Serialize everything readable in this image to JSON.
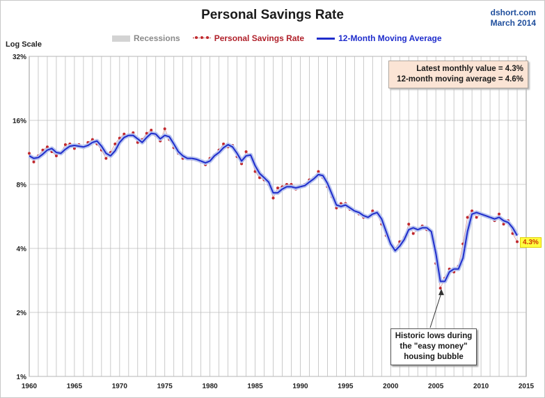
{
  "header": {
    "title": "Personal Savings Rate",
    "source_line1": "dshort.com",
    "source_line2": "March 2014"
  },
  "legend": {
    "recessions": "Recessions",
    "savings_rate": "Personal Savings Rate",
    "moving_average": "12-Month Moving Average"
  },
  "info_box": {
    "line1": "Latest monthly value = 4.3%",
    "line2": "12-month moving average = 4.6%"
  },
  "annotation": {
    "line1": "Historic lows during",
    "line2": "the \"easy money\"",
    "line3": "housing bubble"
  },
  "latest_label": "4.3%",
  "chart_data": {
    "type": "line",
    "title": "Personal Savings Rate",
    "ylabel": "Log Scale",
    "xlabel": "",
    "y_scale": "log2",
    "ylim": [
      1,
      32
    ],
    "xlim": [
      1960,
      2015
    ],
    "y_ticks": [
      "1%",
      "2%",
      "4%",
      "8%",
      "16%",
      "32%"
    ],
    "y_tick_values": [
      1,
      2,
      4,
      8,
      16,
      32
    ],
    "x_ticks": [
      "1960",
      "1965",
      "1970",
      "1975",
      "1980",
      "1985",
      "1990",
      "1995",
      "2000",
      "2005",
      "2010",
      "2015"
    ],
    "x_tick_values": [
      1960,
      1965,
      1970,
      1975,
      1980,
      1985,
      1990,
      1995,
      2000,
      2005,
      2010,
      2015
    ],
    "grid": "vertical yearly lines, horizontal at y ticks",
    "legend_position": "top",
    "recessions": [
      [
        1960.3,
        1961.1
      ],
      [
        1969.9,
        1970.9
      ],
      [
        1973.9,
        1975.2
      ],
      [
        1980.0,
        1980.5
      ],
      [
        1981.5,
        1982.9
      ],
      [
        1990.5,
        1991.2
      ],
      [
        2001.2,
        2001.9
      ],
      [
        2007.9,
        2009.5
      ]
    ],
    "colors": {
      "recession": "#d3d3d3",
      "monthly": "#c0282d",
      "moving_average": "#1f2dcc",
      "moving_average_halo": "#b8c4ee"
    },
    "series": [
      {
        "name": "Personal Savings Rate",
        "style": "monthly points",
        "x": [
          1960.0,
          1960.5,
          1961.0,
          1961.5,
          1962.0,
          1962.5,
          1963.0,
          1963.5,
          1964.0,
          1964.5,
          1965.0,
          1965.5,
          1966.0,
          1966.5,
          1967.0,
          1967.5,
          1968.0,
          1968.5,
          1969.0,
          1969.5,
          1970.0,
          1970.5,
          1971.0,
          1971.5,
          1972.0,
          1972.5,
          1973.0,
          1973.5,
          1974.0,
          1974.5,
          1975.0,
          1975.5,
          1976.0,
          1976.5,
          1977.0,
          1977.5,
          1978.0,
          1978.5,
          1979.0,
          1979.5,
          1980.0,
          1980.5,
          1981.0,
          1981.5,
          1982.0,
          1982.5,
          1983.0,
          1983.5,
          1984.0,
          1984.5,
          1985.0,
          1985.5,
          1986.0,
          1986.5,
          1987.0,
          1987.5,
          1988.0,
          1988.5,
          1989.0,
          1989.5,
          1990.0,
          1990.5,
          1991.0,
          1991.5,
          1992.0,
          1992.5,
          1993.0,
          1993.5,
          1994.0,
          1994.5,
          1995.0,
          1995.5,
          1996.0,
          1996.5,
          1997.0,
          1997.5,
          1998.0,
          1998.5,
          1999.0,
          1999.5,
          2000.0,
          2000.5,
          2001.0,
          2001.5,
          2002.0,
          2002.5,
          2003.0,
          2003.5,
          2004.0,
          2004.5,
          2005.0,
          2005.5,
          2006.0,
          2006.5,
          2007.0,
          2007.5,
          2008.0,
          2008.5,
          2009.0,
          2009.5,
          2010.0,
          2010.5,
          2011.0,
          2011.5,
          2012.0,
          2012.5,
          2013.0,
          2013.5,
          2014.0
        ],
        "values": [
          11.2,
          10.2,
          10.9,
          11.6,
          12.0,
          11.4,
          10.9,
          11.3,
          12.3,
          12.4,
          11.8,
          12.3,
          11.9,
          12.6,
          13.0,
          12.4,
          11.6,
          10.6,
          11.3,
          12.4,
          13.2,
          13.8,
          13.6,
          14.0,
          12.6,
          13.0,
          13.9,
          14.4,
          13.6,
          12.8,
          14.6,
          13.0,
          11.9,
          11.2,
          10.6,
          10.7,
          10.5,
          10.4,
          10.2,
          9.9,
          10.6,
          11.0,
          11.6,
          12.4,
          12.0,
          12.2,
          10.8,
          10.0,
          11.4,
          10.8,
          9.2,
          8.6,
          8.4,
          8.0,
          6.9,
          7.7,
          7.8,
          8.0,
          8.0,
          7.6,
          7.8,
          8.0,
          8.4,
          8.6,
          9.2,
          8.6,
          7.8,
          7.0,
          6.2,
          6.5,
          6.5,
          6.1,
          6.0,
          5.8,
          5.6,
          5.6,
          6.0,
          5.8,
          5.2,
          4.6,
          4.2,
          4.0,
          4.3,
          4.5,
          5.2,
          4.7,
          4.9,
          5.1,
          4.9,
          4.7,
          3.4,
          2.6,
          2.9,
          3.2,
          3.1,
          3.3,
          4.2,
          5.6,
          6.0,
          5.6,
          5.8,
          5.7,
          5.6,
          5.4,
          5.8,
          5.2,
          5.4,
          4.7,
          4.3
        ]
      },
      {
        "name": "12-Month Moving Average",
        "style": "line",
        "x": [
          1960.0,
          1960.5,
          1961.0,
          1961.5,
          1962.0,
          1962.5,
          1963.0,
          1963.5,
          1964.0,
          1964.5,
          1965.0,
          1965.5,
          1966.0,
          1966.5,
          1967.0,
          1967.5,
          1968.0,
          1968.5,
          1969.0,
          1969.5,
          1970.0,
          1970.5,
          1971.0,
          1971.5,
          1972.0,
          1972.5,
          1973.0,
          1973.5,
          1974.0,
          1974.5,
          1975.0,
          1975.5,
          1976.0,
          1976.5,
          1977.0,
          1977.5,
          1978.0,
          1978.5,
          1979.0,
          1979.5,
          1980.0,
          1980.5,
          1981.0,
          1981.5,
          1982.0,
          1982.5,
          1983.0,
          1983.5,
          1984.0,
          1984.5,
          1985.0,
          1985.5,
          1986.0,
          1986.5,
          1987.0,
          1987.5,
          1988.0,
          1988.5,
          1989.0,
          1989.5,
          1990.0,
          1990.5,
          1991.0,
          1991.5,
          1992.0,
          1992.5,
          1993.0,
          1993.5,
          1994.0,
          1994.5,
          1995.0,
          1995.5,
          1996.0,
          1996.5,
          1997.0,
          1997.5,
          1998.0,
          1998.5,
          1999.0,
          1999.5,
          2000.0,
          2000.5,
          2001.0,
          2001.5,
          2002.0,
          2002.5,
          2003.0,
          2003.5,
          2004.0,
          2004.5,
          2005.0,
          2005.5,
          2006.0,
          2006.5,
          2007.0,
          2007.5,
          2008.0,
          2008.5,
          2009.0,
          2009.5,
          2010.0,
          2010.5,
          2011.0,
          2011.5,
          2012.0,
          2012.5,
          2013.0,
          2013.5,
          2014.0
        ],
        "values": [
          10.9,
          10.6,
          10.7,
          11.1,
          11.6,
          11.8,
          11.3,
          11.2,
          11.7,
          12.1,
          12.2,
          12.1,
          12.0,
          12.2,
          12.6,
          12.8,
          12.1,
          11.2,
          10.9,
          11.5,
          12.6,
          13.3,
          13.6,
          13.6,
          13.1,
          12.6,
          13.3,
          13.9,
          13.8,
          13.1,
          13.6,
          13.4,
          12.4,
          11.4,
          10.9,
          10.6,
          10.6,
          10.5,
          10.3,
          10.1,
          10.3,
          10.9,
          11.3,
          11.9,
          12.3,
          12.0,
          11.2,
          10.3,
          10.9,
          11.0,
          9.8,
          9.0,
          8.6,
          8.2,
          7.3,
          7.3,
          7.6,
          7.8,
          7.8,
          7.7,
          7.8,
          7.9,
          8.2,
          8.5,
          8.9,
          8.8,
          8.1,
          7.2,
          6.4,
          6.3,
          6.4,
          6.2,
          6.0,
          5.9,
          5.7,
          5.6,
          5.8,
          5.9,
          5.5,
          4.8,
          4.2,
          3.9,
          4.1,
          4.4,
          4.9,
          5.0,
          4.9,
          5.0,
          5.0,
          4.8,
          3.8,
          2.8,
          2.8,
          3.1,
          3.2,
          3.2,
          3.6,
          4.8,
          5.8,
          5.9,
          5.8,
          5.7,
          5.6,
          5.5,
          5.6,
          5.4,
          5.3,
          5.0,
          4.6
        ]
      }
    ]
  }
}
